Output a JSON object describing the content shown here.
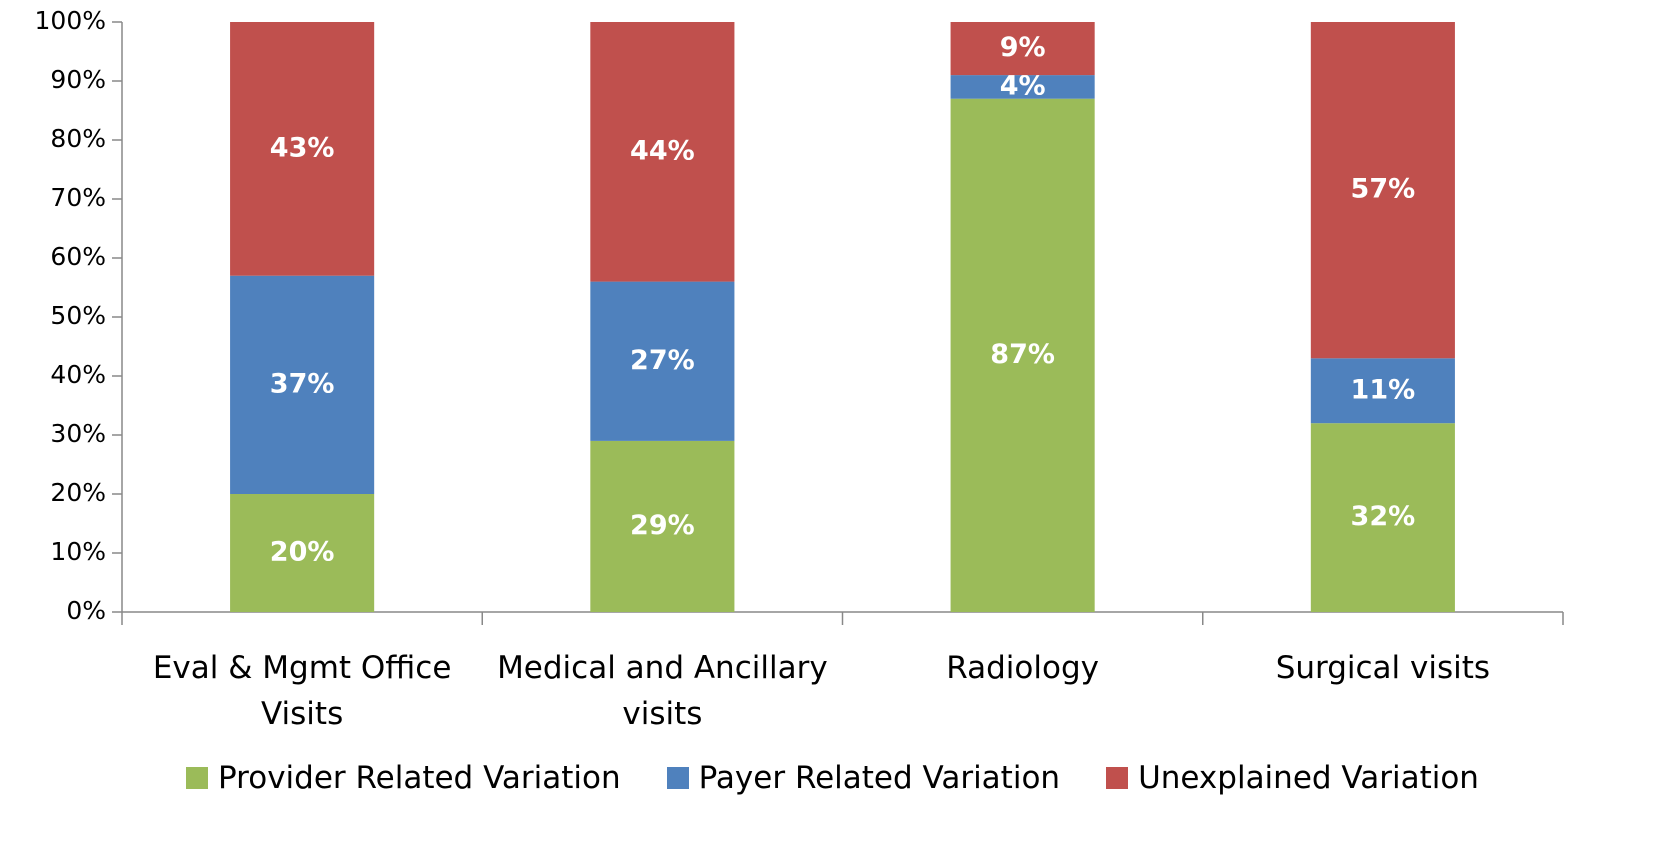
{
  "chart_data": {
    "type": "stacked_bar",
    "categories": [
      "Eval & Mgmt Office Visits",
      "Medical and Ancillary visits",
      "Radiology",
      "Surgical visits"
    ],
    "series": [
      {
        "name": "Provider Related Variation",
        "color": "#9bbb59",
        "values": [
          20,
          29,
          87,
          32
        ],
        "value_labels": [
          "20%",
          "29%",
          "87%",
          "32%"
        ]
      },
      {
        "name": "Payer Related Variation",
        "color": "#4f81bd",
        "values": [
          37,
          27,
          4,
          11
        ],
        "value_labels": [
          "37%",
          "27%",
          "4%",
          "11%"
        ]
      },
      {
        "name": "Unexplained Variation",
        "color": "#c0504d",
        "values": [
          43,
          44,
          9,
          57
        ],
        "value_labels": [
          "43%",
          "44%",
          "9%",
          "57%"
        ]
      }
    ],
    "ylim": [
      0,
      100
    ],
    "yticks": [
      {
        "value": 0,
        "label": "0%"
      },
      {
        "value": 10,
        "label": "10%"
      },
      {
        "value": 20,
        "label": "20%"
      },
      {
        "value": 30,
        "label": "30%"
      },
      {
        "value": 40,
        "label": "40%"
      },
      {
        "value": 50,
        "label": "50%"
      },
      {
        "value": 60,
        "label": "60%"
      },
      {
        "value": 70,
        "label": "70%"
      },
      {
        "value": 80,
        "label": "80%"
      },
      {
        "value": 90,
        "label": "90%"
      },
      {
        "value": 100,
        "label": "100%"
      }
    ],
    "legend": "bottom"
  }
}
